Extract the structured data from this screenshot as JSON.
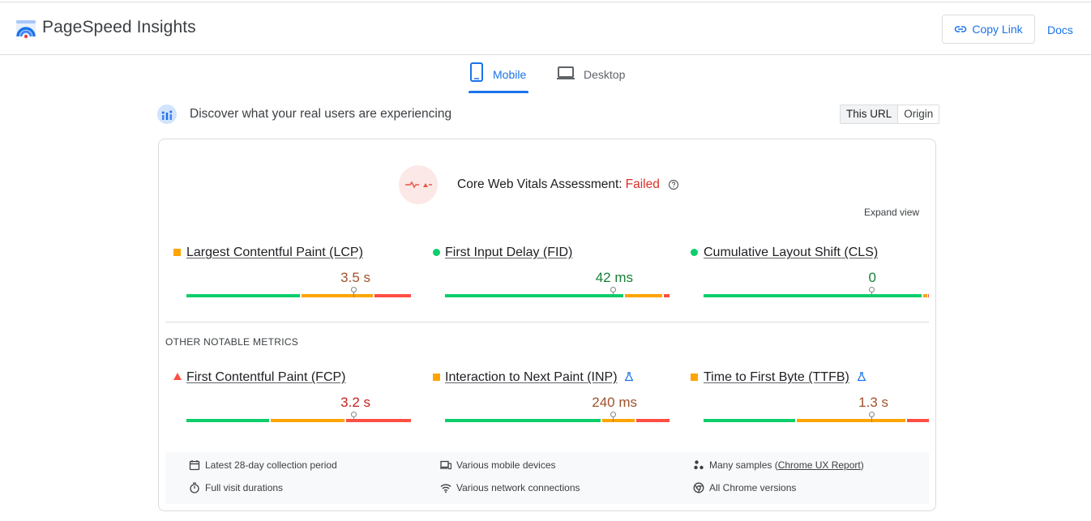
{
  "header": {
    "brand": "PageSpeed Insights",
    "copy_link": "Copy Link",
    "docs": "Docs"
  },
  "tabs": [
    {
      "label": "Mobile",
      "active": true
    },
    {
      "label": "Desktop",
      "active": false
    }
  ],
  "field_data": {
    "heading": "Discover what your real users are experiencing",
    "toggle": [
      "This URL",
      "Origin"
    ],
    "assessment_label": "Core Web Vitals Assessment:",
    "assessment_status": "Failed",
    "expand_view": "Expand view"
  },
  "core_metrics": [
    {
      "name": "Largest Contentful Paint (LCP)",
      "value": "3.5 s",
      "rating": "average"
    },
    {
      "name": "First Input Delay (FID)",
      "value": "42 ms",
      "rating": "good"
    },
    {
      "name": "Cumulative Layout Shift (CLS)",
      "value": "0",
      "rating": "good"
    }
  ],
  "other_label": "OTHER NOTABLE METRICS",
  "other_metrics": [
    {
      "name": "First Contentful Paint (FCP)",
      "value": "3.2 s",
      "rating": "poor"
    },
    {
      "name": "Interaction to Next Paint (INP)",
      "value": "240 ms",
      "rating": "average"
    },
    {
      "name": "Time to First Byte (TTFB)",
      "value": "1.3 s",
      "rating": "average"
    }
  ],
  "info": {
    "period": "Latest 28-day collection period",
    "devices": "Various mobile devices",
    "samples_prefix": "Many samples (",
    "samples_link": "Chrome UX Report",
    "samples_suffix": ")",
    "durations": "Full visit durations",
    "network": "Various network connections",
    "chrome": "All Chrome versions"
  },
  "colors": {
    "accent": "#1a73e8",
    "good": "#0cce6b",
    "average": "#ffa400",
    "poor": "#ff4e42",
    "failed_text": "#d93025"
  }
}
